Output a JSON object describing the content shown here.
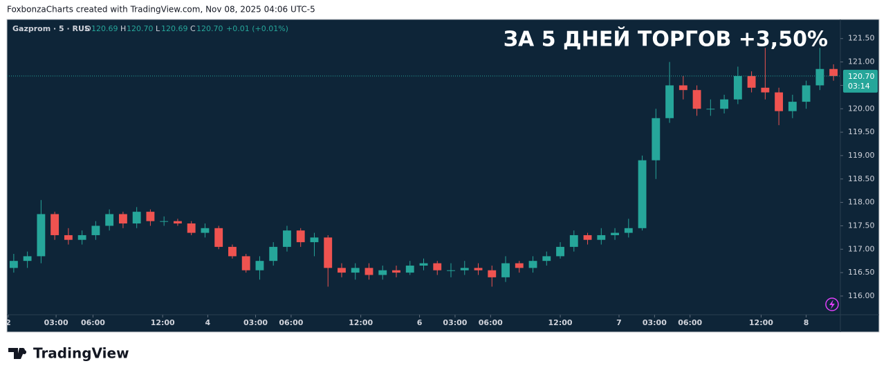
{
  "header": "FoxbonzaCharts created with TradingView.com, Nov 08, 2025 04:06 UTC-5",
  "brand": "TradingView",
  "chart_data": {
    "type": "candlestick",
    "title": "ЗА 5 ДНЕЙ ТОРГОВ +3,50%",
    "symbol": "Gazprom · 5 · RUS",
    "legend": {
      "o_label": "O",
      "o": "120.69",
      "h_label": "H",
      "h": "120.70",
      "l_label": "L",
      "l": "120.69",
      "c_label": "C",
      "c": "120.70",
      "change": "+0.01 (+0.01%)"
    },
    "up_color": "#26a69a",
    "down_color": "#ef5350",
    "open": [
      116.6,
      116.75,
      116.85,
      117.75,
      117.3,
      117.2,
      117.3,
      117.5,
      117.75,
      117.55,
      117.8,
      117.6,
      117.6,
      117.55,
      117.35,
      117.45,
      117.05,
      116.85,
      116.55,
      116.75,
      117.05,
      117.4,
      117.15,
      117.25,
      116.6,
      116.5,
      116.6,
      116.45,
      116.55,
      116.5,
      116.65,
      116.7,
      116.55,
      116.55,
      116.6,
      116.55,
      116.4,
      116.7,
      116.6,
      116.75,
      116.85,
      117.05,
      117.3,
      117.2,
      117.3,
      117.35,
      117.45,
      118.9,
      119.8,
      120.5,
      120.4,
      120.0,
      120.0,
      120.2,
      120.7,
      120.45,
      120.35,
      119.95,
      120.15,
      120.5,
      120.85
    ],
    "high": [
      116.9,
      116.95,
      118.05,
      117.8,
      117.45,
      117.4,
      117.6,
      117.85,
      117.8,
      117.9,
      117.85,
      117.7,
      117.65,
      117.6,
      117.55,
      117.5,
      117.1,
      116.9,
      116.85,
      117.15,
      117.5,
      117.45,
      117.35,
      117.3,
      116.7,
      116.7,
      116.7,
      116.65,
      116.65,
      116.75,
      116.8,
      116.75,
      116.7,
      116.75,
      116.7,
      116.65,
      116.85,
      116.75,
      116.85,
      116.95,
      117.15,
      117.4,
      117.35,
      117.45,
      117.45,
      117.65,
      119.0,
      120.0,
      121.0,
      120.7,
      120.5,
      120.2,
      120.3,
      120.9,
      120.8,
      121.3,
      120.45,
      120.3,
      120.6,
      121.3,
      120.95
    ],
    "low": [
      116.5,
      116.6,
      116.7,
      117.2,
      117.1,
      117.1,
      117.2,
      117.4,
      117.45,
      117.45,
      117.5,
      117.5,
      117.5,
      117.3,
      117.25,
      117.0,
      116.8,
      116.5,
      116.35,
      116.65,
      116.95,
      117.05,
      116.85,
      116.2,
      116.4,
      116.35,
      116.35,
      116.35,
      116.4,
      116.45,
      116.55,
      116.45,
      116.4,
      116.45,
      116.45,
      116.2,
      116.3,
      116.5,
      116.5,
      116.65,
      116.8,
      116.95,
      117.1,
      117.1,
      117.2,
      117.25,
      117.4,
      118.5,
      119.7,
      120.2,
      119.85,
      119.85,
      119.9,
      120.1,
      120.35,
      120.2,
      119.65,
      119.8,
      120.0,
      120.4,
      120.6
    ],
    "close": [
      116.75,
      116.85,
      117.75,
      117.3,
      117.2,
      117.3,
      117.5,
      117.75,
      117.55,
      117.8,
      117.6,
      117.6,
      117.55,
      117.35,
      117.45,
      117.05,
      116.85,
      116.55,
      116.75,
      117.05,
      117.4,
      117.15,
      117.25,
      116.6,
      116.5,
      116.6,
      116.45,
      116.55,
      116.5,
      116.65,
      116.7,
      116.55,
      116.55,
      116.6,
      116.55,
      116.4,
      116.7,
      116.6,
      116.75,
      116.85,
      117.05,
      117.3,
      117.2,
      117.3,
      117.35,
      117.45,
      118.9,
      119.8,
      120.5,
      120.4,
      120.0,
      120.0,
      120.2,
      120.7,
      120.45,
      120.35,
      119.95,
      120.15,
      120.5,
      120.85,
      120.7
    ],
    "last_price": {
      "value": 120.7,
      "label": "120.70"
    },
    "countdown": "03:14",
    "xlim": [
      0,
      61
    ],
    "xticks": [
      {
        "value": 0.1,
        "label": "2"
      },
      {
        "value": 3.6,
        "label": "03:00"
      },
      {
        "value": 6.3,
        "label": "06:00"
      },
      {
        "value": 11.4,
        "label": "12:00"
      },
      {
        "value": 14.7,
        "label": "4"
      },
      {
        "value": 18.2,
        "label": "03:00"
      },
      {
        "value": 20.8,
        "label": "06:00"
      },
      {
        "value": 25.9,
        "label": "12:00"
      },
      {
        "value": 30.2,
        "label": "6"
      },
      {
        "value": 32.8,
        "label": "03:00"
      },
      {
        "value": 35.4,
        "label": "06:00"
      },
      {
        "value": 40.5,
        "label": "12:00"
      },
      {
        "value": 44.8,
        "label": "7"
      },
      {
        "value": 47.4,
        "label": "03:00"
      },
      {
        "value": 50.0,
        "label": "06:00"
      },
      {
        "value": 55.2,
        "label": "12:00"
      },
      {
        "value": 58.5,
        "label": "8"
      }
    ],
    "ylim": [
      115.6,
      121.91
    ],
    "yticks": [
      {
        "value": 116,
        "label": "116.00"
      },
      {
        "value": 116.5,
        "label": "116.50"
      },
      {
        "value": 117,
        "label": "117.00"
      },
      {
        "value": 117.5,
        "label": "117.50"
      },
      {
        "value": 118,
        "label": "118.00"
      },
      {
        "value": 118.5,
        "label": "118.50"
      },
      {
        "value": 119,
        "label": "119.00"
      },
      {
        "value": 119.5,
        "label": "119.50"
      },
      {
        "value": 120,
        "label": "120.00"
      },
      {
        "value": 120.5,
        "label": "120.50"
      },
      {
        "value": 121,
        "label": "121.00"
      },
      {
        "value": 121.5,
        "label": "121.50"
      }
    ]
  }
}
